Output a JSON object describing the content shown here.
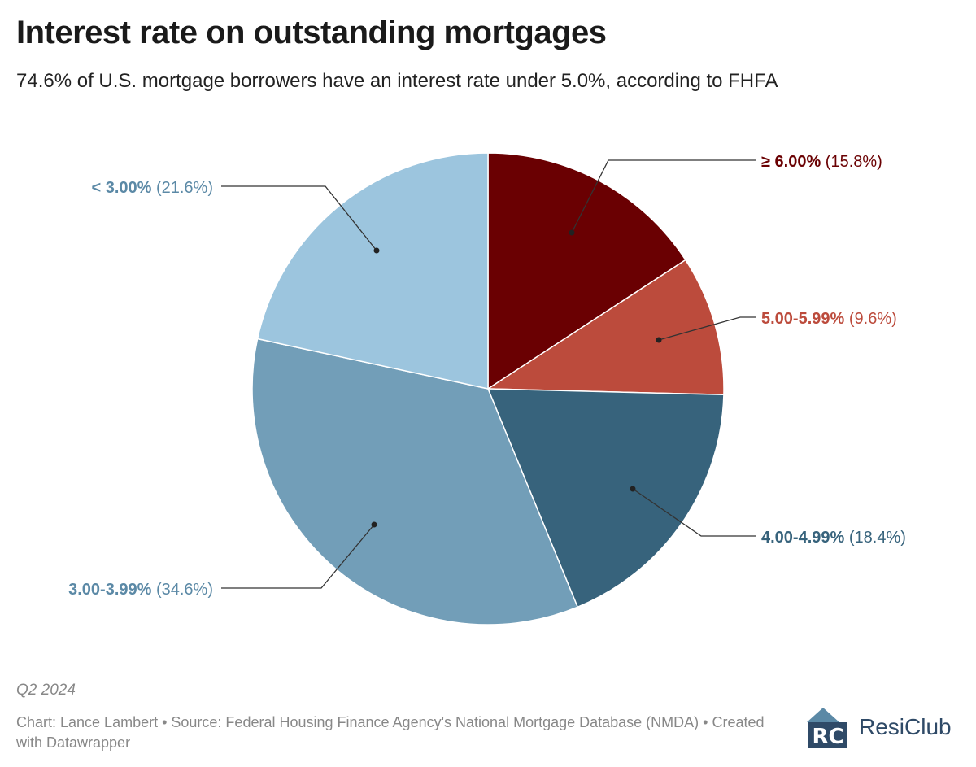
{
  "header": {
    "title": "Interest rate on outstanding mortgages",
    "subtitle": "74.6% of U.S. mortgage borrowers have an interest rate under 5.0%, according to FHFA"
  },
  "chart_data": {
    "type": "pie",
    "start_angle_deg": 0,
    "direction": "clockwise",
    "slices": [
      {
        "label": "≥ 6.00%",
        "value": 15.8,
        "pct_text": "(15.8%)",
        "color": "#6a0002",
        "label_color": "#6a0002"
      },
      {
        "label": "5.00-5.99%",
        "value": 9.6,
        "pct_text": "(9.6%)",
        "color": "#bc4b3c",
        "label_color": "#bc4b3c"
      },
      {
        "label": "4.00-4.99%",
        "value": 18.4,
        "pct_text": "(18.4%)",
        "color": "#37637c",
        "label_color": "#37637c"
      },
      {
        "label": "3.00-3.99%",
        "value": 34.6,
        "pct_text": "(34.6%)",
        "color": "#729eb8",
        "label_color": "#5b89a6"
      },
      {
        "label": "< 3.00%",
        "value": 21.6,
        "pct_text": "(21.6%)",
        "color": "#9cc5de",
        "label_color": "#5b89a6"
      }
    ]
  },
  "footer": {
    "note": "Q2 2024",
    "source": "Chart: Lance Lambert • Source: Federal Housing Finance Agency's National Mortgage Database (NMDA) • Created with Datawrapper",
    "brand": "ResiClub",
    "logo_mark": "RC",
    "logo_color": "#2f4a67",
    "logo_accent": "#5b89a6"
  }
}
